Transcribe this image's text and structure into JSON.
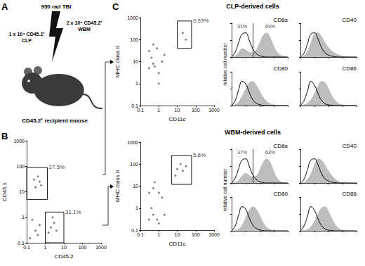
{
  "panel_labels": [
    "A",
    "B",
    "C"
  ],
  "schematic": {
    "irradiation": "950 rad TBI",
    "donor_1": "1 x 10⁴ CD45.1⁺\nCLP",
    "donor_2": "2 x 10⁵ CD45.2⁺\nWBM",
    "recipient": "CD45.2⁺ recipient mouse"
  },
  "headers": [
    "CLP-derived cells",
    "WBM-derived cells"
  ],
  "chart_data": [
    {
      "type": "scatter",
      "xlabel": "CD45.2",
      "ylabel": "CD45.1",
      "log": true,
      "grid": false,
      "xlim": [
        0.1,
        1000
      ],
      "ylim": [
        0.1,
        1000
      ],
      "xticks": [
        0.1,
        1,
        10,
        100,
        1000
      ],
      "yticks": [
        0.1,
        1,
        10,
        100,
        1000
      ],
      "color": "#555555",
      "points": [
        [
          0.3,
          15
        ],
        [
          0.5,
          25
        ],
        [
          0.4,
          40
        ],
        [
          0.25,
          30
        ],
        [
          0.6,
          18
        ],
        [
          0.3,
          0.3
        ],
        [
          0.5,
          0.5
        ],
        [
          0.2,
          0.8
        ],
        [
          0.4,
          0.2
        ],
        [
          2,
          0.4
        ],
        [
          3,
          0.6
        ],
        [
          4,
          0.3
        ],
        [
          2.5,
          1
        ],
        [
          1.5,
          0.25
        ],
        [
          0.15,
          0.15
        ]
      ],
      "gates": [
        {
          "x": [
            0.1,
            1.3
          ],
          "y": [
            5,
            90
          ],
          "label": "27.5%"
        },
        {
          "x": [
            1,
            10
          ],
          "y": [
            0.1,
            1.6
          ],
          "label": "31.1%"
        }
      ]
    },
    {
      "type": "scatter",
      "xlabel": "CD11c",
      "ylabel": "MHC class II",
      "log": true,
      "grid": false,
      "xlim": [
        0.1,
        1000
      ],
      "ylim": [
        0.1,
        1000
      ],
      "xticks": [
        0.1,
        1,
        10,
        100,
        1000
      ],
      "yticks": [
        0.1,
        1,
        10,
        100,
        1000
      ],
      "color": "#555555",
      "points": [
        [
          0.3,
          5
        ],
        [
          0.5,
          8
        ],
        [
          0.4,
          15
        ],
        [
          0.6,
          6
        ],
        [
          0.3,
          30
        ],
        [
          1,
          3
        ],
        [
          1.5,
          10
        ],
        [
          2,
          20
        ],
        [
          0.8,
          40
        ],
        [
          0.5,
          60
        ],
        [
          1,
          1
        ],
        [
          20,
          200
        ],
        [
          30,
          100
        ]
      ],
      "gates": [
        {
          "x": [
            10,
            60
          ],
          "y": [
            40,
            700
          ],
          "label": "0.53%"
        }
      ]
    },
    {
      "type": "line",
      "title": "CD8α",
      "ylabel": "relative cell number",
      "tick_labels": false,
      "grid": false,
      "x": [
        0,
        0.25,
        0.5,
        0.75,
        1,
        1.25,
        1.5,
        1.75,
        2,
        2.25,
        2.5,
        2.75,
        3,
        3.25,
        3.5,
        3.75,
        4
      ],
      "xlim": [
        0,
        4
      ],
      "ylim": [
        0,
        140
      ],
      "xticks": [
        0,
        1,
        2,
        3,
        4
      ],
      "yticks": [
        0,
        70,
        140
      ],
      "split": 1.5,
      "annotations": [
        "31%",
        "69%"
      ],
      "series": [
        {
          "type": "area",
          "color": "#bdbdbd",
          "values": [
            0,
            5,
            20,
            35,
            30,
            20,
            18,
            30,
            60,
            90,
            100,
            80,
            45,
            20,
            8,
            2,
            0
          ]
        },
        {
          "type": "line",
          "color": "#000000",
          "values": [
            0,
            20,
            60,
            95,
            100,
            70,
            35,
            15,
            5,
            2,
            0,
            0,
            0,
            0,
            0,
            0,
            0
          ]
        }
      ]
    },
    {
      "type": "line",
      "title": "CD40",
      "tick_labels": false,
      "grid": false,
      "x": [
        0,
        0.25,
        0.5,
        0.75,
        1,
        1.25,
        1.5,
        1.75,
        2,
        2.25,
        2.5,
        2.75,
        3,
        3.25,
        3.5,
        3.75,
        4
      ],
      "xlim": [
        0,
        4
      ],
      "ylim": [
        0,
        140
      ],
      "xticks": [
        0,
        1,
        2,
        3,
        4
      ],
      "yticks": [
        0,
        70,
        140
      ],
      "series": [
        {
          "type": "area",
          "color": "#bdbdbd",
          "values": [
            0,
            5,
            25,
            60,
            95,
            100,
            85,
            60,
            40,
            25,
            15,
            8,
            4,
            2,
            0,
            0,
            0
          ]
        },
        {
          "type": "line",
          "color": "#000000",
          "values": [
            0,
            15,
            55,
            95,
            100,
            75,
            40,
            18,
            8,
            3,
            1,
            0,
            0,
            0,
            0,
            0,
            0
          ]
        }
      ]
    },
    {
      "type": "line",
      "title": "CD80",
      "tick_labels": false,
      "grid": false,
      "x": [
        0,
        0.25,
        0.5,
        0.75,
        1,
        1.25,
        1.5,
        1.75,
        2,
        2.25,
        2.5,
        2.75,
        3,
        3.25,
        3.5,
        3.75,
        4
      ],
      "xlim": [
        0,
        4
      ],
      "ylim": [
        0,
        140
      ],
      "xticks": [
        0,
        1,
        2,
        3,
        4
      ],
      "yticks": [
        0,
        70,
        140
      ],
      "series": [
        {
          "type": "area",
          "color": "#bdbdbd",
          "values": [
            0,
            4,
            15,
            40,
            70,
            95,
            100,
            85,
            60,
            35,
            18,
            8,
            3,
            1,
            0,
            0,
            0
          ]
        },
        {
          "type": "line",
          "color": "#000000",
          "values": [
            0,
            20,
            65,
            100,
            90,
            55,
            25,
            10,
            4,
            1,
            0,
            0,
            0,
            0,
            0,
            0,
            0
          ]
        }
      ]
    },
    {
      "type": "line",
      "title": "CD86",
      "tick_labels": false,
      "grid": false,
      "x": [
        0,
        0.25,
        0.5,
        0.75,
        1,
        1.25,
        1.5,
        1.75,
        2,
        2.25,
        2.5,
        2.75,
        3,
        3.25,
        3.5,
        3.75,
        4
      ],
      "xlim": [
        0,
        4
      ],
      "ylim": [
        0,
        140
      ],
      "xticks": [
        0,
        1,
        2,
        3,
        4
      ],
      "yticks": [
        0,
        70,
        140
      ],
      "series": [
        {
          "type": "area",
          "color": "#bdbdbd",
          "values": [
            0,
            3,
            10,
            25,
            50,
            80,
            100,
            95,
            70,
            40,
            20,
            8,
            3,
            1,
            0,
            0,
            0
          ]
        },
        {
          "type": "line",
          "color": "#000000",
          "values": [
            0,
            20,
            60,
            100,
            85,
            50,
            22,
            8,
            3,
            1,
            0,
            0,
            0,
            0,
            0,
            0,
            0
          ]
        }
      ]
    },
    {
      "type": "scatter",
      "xlabel": "CD11c",
      "ylabel": "MHC class II",
      "log": true,
      "grid": false,
      "xlim": [
        0.1,
        1000
      ],
      "ylim": [
        0.1,
        1000
      ],
      "xticks": [
        0.1,
        1,
        10,
        100,
        1000
      ],
      "yticks": [
        0.1,
        1,
        10,
        100,
        1000
      ],
      "color": "#555555",
      "points": [
        [
          0.3,
          0.3
        ],
        [
          0.5,
          0.5
        ],
        [
          0.8,
          0.3
        ],
        [
          0.4,
          1
        ],
        [
          0.3,
          5
        ],
        [
          0.5,
          8
        ],
        [
          0.6,
          15
        ],
        [
          1,
          5
        ],
        [
          1.5,
          3
        ],
        [
          2,
          0.5
        ],
        [
          1,
          0.2
        ],
        [
          10,
          60
        ],
        [
          15,
          100
        ],
        [
          20,
          50
        ],
        [
          30,
          80
        ],
        [
          8,
          30
        ]
      ],
      "gates": [
        {
          "x": [
            5,
            60
          ],
          "y": [
            12,
            250
          ],
          "label": "5.6%"
        }
      ]
    },
    {
      "type": "line",
      "title": "CD8α",
      "ylabel": "relative cell number",
      "tick_labels": false,
      "grid": false,
      "x": [
        0,
        0.25,
        0.5,
        0.75,
        1,
        1.25,
        1.5,
        1.75,
        2,
        2.25,
        2.5,
        2.75,
        3,
        3.25,
        3.5,
        3.75,
        4
      ],
      "xlim": [
        0,
        4
      ],
      "ylim": [
        0,
        140
      ],
      "xticks": [
        0,
        1,
        2,
        3,
        4
      ],
      "yticks": [
        0,
        70,
        140
      ],
      "split": 1.5,
      "annotations": [
        "37%",
        "63%"
      ],
      "series": [
        {
          "type": "area",
          "color": "#bdbdbd",
          "values": [
            0,
            3,
            12,
            30,
            40,
            32,
            25,
            30,
            55,
            85,
            100,
            85,
            50,
            20,
            6,
            1,
            0
          ]
        },
        {
          "type": "line",
          "color": "#000000",
          "values": [
            0,
            20,
            60,
            95,
            100,
            70,
            35,
            15,
            5,
            2,
            0,
            0,
            0,
            0,
            0,
            0,
            0
          ]
        }
      ]
    },
    {
      "type": "line",
      "title": "CD40",
      "tick_labels": false,
      "grid": false,
      "x": [
        0,
        0.25,
        0.5,
        0.75,
        1,
        1.25,
        1.5,
        1.75,
        2,
        2.25,
        2.5,
        2.75,
        3,
        3.25,
        3.5,
        3.75,
        4
      ],
      "xlim": [
        0,
        4
      ],
      "ylim": [
        0,
        140
      ],
      "xticks": [
        0,
        1,
        2,
        3,
        4
      ],
      "yticks": [
        0,
        70,
        140
      ],
      "series": [
        {
          "type": "area",
          "color": "#bdbdbd",
          "values": [
            0,
            3,
            15,
            40,
            75,
            100,
            95,
            75,
            50,
            30,
            15,
            6,
            2,
            1,
            0,
            0,
            0
          ]
        },
        {
          "type": "line",
          "color": "#000000",
          "values": [
            0,
            15,
            55,
            95,
            100,
            75,
            40,
            18,
            8,
            3,
            1,
            0,
            0,
            0,
            0,
            0,
            0
          ]
        }
      ]
    },
    {
      "type": "line",
      "title": "CD80",
      "tick_labels": false,
      "grid": false,
      "x": [
        0,
        0.25,
        0.5,
        0.75,
        1,
        1.25,
        1.5,
        1.75,
        2,
        2.25,
        2.5,
        2.75,
        3,
        3.25,
        3.5,
        3.75,
        4
      ],
      "xlim": [
        0,
        4
      ],
      "ylim": [
        0,
        140
      ],
      "xticks": [
        0,
        1,
        2,
        3,
        4
      ],
      "yticks": [
        0,
        70,
        140
      ],
      "series": [
        {
          "type": "area",
          "color": "#bdbdbd",
          "values": [
            0,
            2,
            8,
            25,
            55,
            85,
            100,
            90,
            65,
            35,
            15,
            6,
            2,
            0,
            0,
            0,
            0
          ]
        },
        {
          "type": "line",
          "color": "#000000",
          "values": [
            0,
            20,
            65,
            100,
            90,
            55,
            25,
            10,
            4,
            1,
            0,
            0,
            0,
            0,
            0,
            0,
            0
          ]
        }
      ]
    },
    {
      "type": "line",
      "title": "CD86",
      "tick_labels": false,
      "grid": false,
      "x": [
        0,
        0.25,
        0.5,
        0.75,
        1,
        1.25,
        1.5,
        1.75,
        2,
        2.25,
        2.5,
        2.75,
        3,
        3.25,
        3.5,
        3.75,
        4
      ],
      "xlim": [
        0,
        4
      ],
      "ylim": [
        0,
        140
      ],
      "xticks": [
        0,
        1,
        2,
        3,
        4
      ],
      "yticks": [
        0,
        70,
        140
      ],
      "series": [
        {
          "type": "area",
          "color": "#bdbdbd",
          "values": [
            0,
            2,
            6,
            18,
            40,
            70,
            95,
            100,
            80,
            50,
            25,
            10,
            3,
            1,
            0,
            0,
            0
          ]
        },
        {
          "type": "line",
          "color": "#000000",
          "values": [
            0,
            20,
            60,
            100,
            85,
            50,
            22,
            8,
            3,
            1,
            0,
            0,
            0,
            0,
            0,
            0,
            0
          ]
        }
      ]
    }
  ]
}
